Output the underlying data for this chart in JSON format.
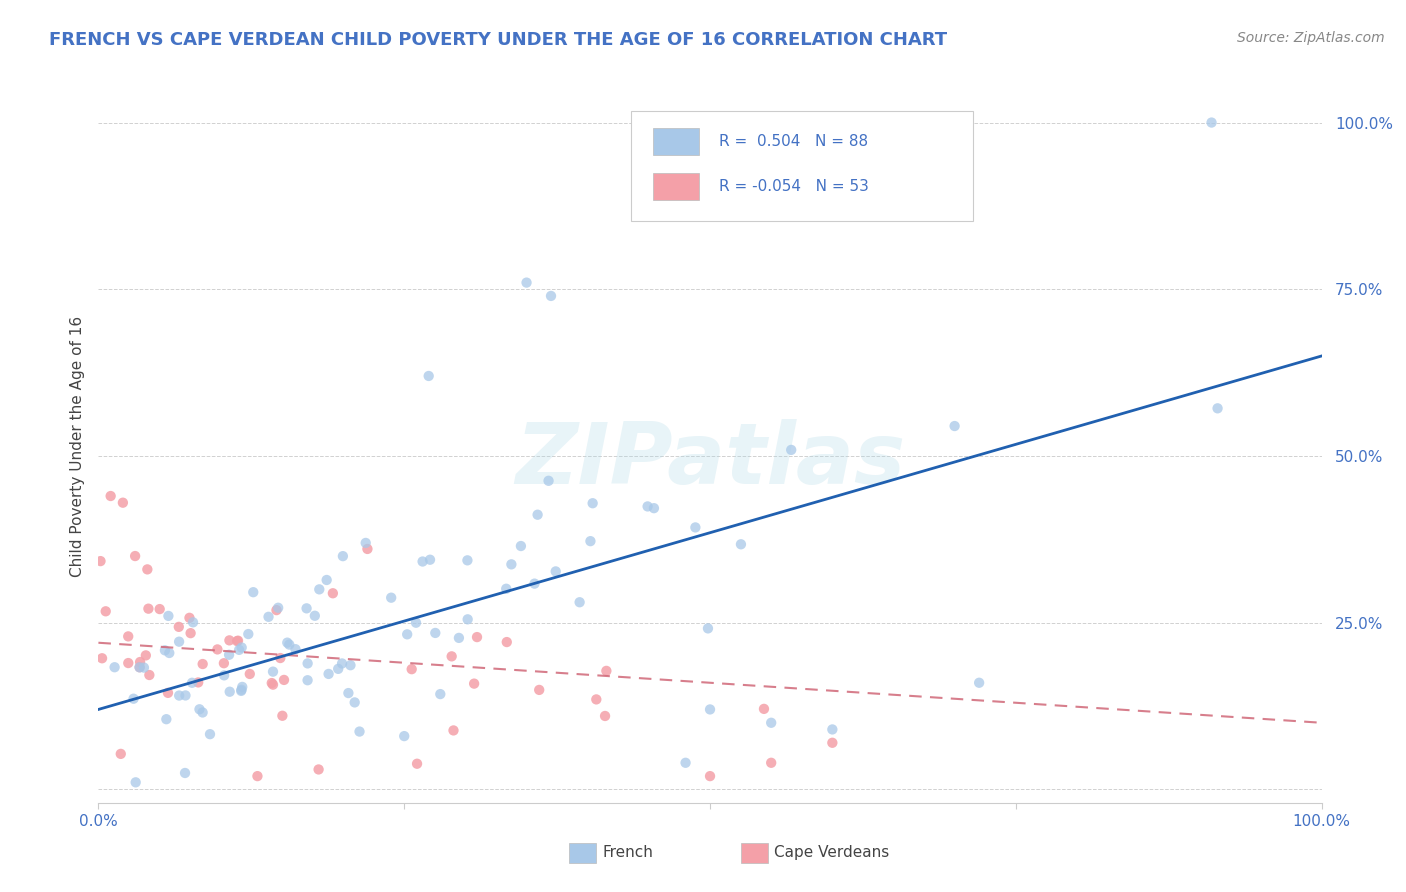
{
  "title": "FRENCH VS CAPE VERDEAN CHILD POVERTY UNDER THE AGE OF 16 CORRELATION CHART",
  "source": "Source: ZipAtlas.com",
  "ylabel": "Child Poverty Under the Age of 16",
  "xlim": [
    0,
    1
  ],
  "ylim": [
    -0.02,
    1.05
  ],
  "french_color": "#a8c8e8",
  "cape_color": "#f4a0a8",
  "french_line_color": "#2060b0",
  "cape_line_color": "#d06878",
  "french_R": 0.504,
  "french_N": 88,
  "cape_R": -0.054,
  "cape_N": 53,
  "legend_label_french": "French",
  "legend_label_cape": "Cape Verdeans",
  "watermark": "ZIPatlas",
  "background_color": "#ffffff",
  "title_color": "#4472c4",
  "title_fontsize": 13,
  "source_fontsize": 10,
  "french_line_y0": 0.12,
  "french_line_y1": 0.65,
  "cape_line_y0": 0.22,
  "cape_line_y1": 0.1
}
